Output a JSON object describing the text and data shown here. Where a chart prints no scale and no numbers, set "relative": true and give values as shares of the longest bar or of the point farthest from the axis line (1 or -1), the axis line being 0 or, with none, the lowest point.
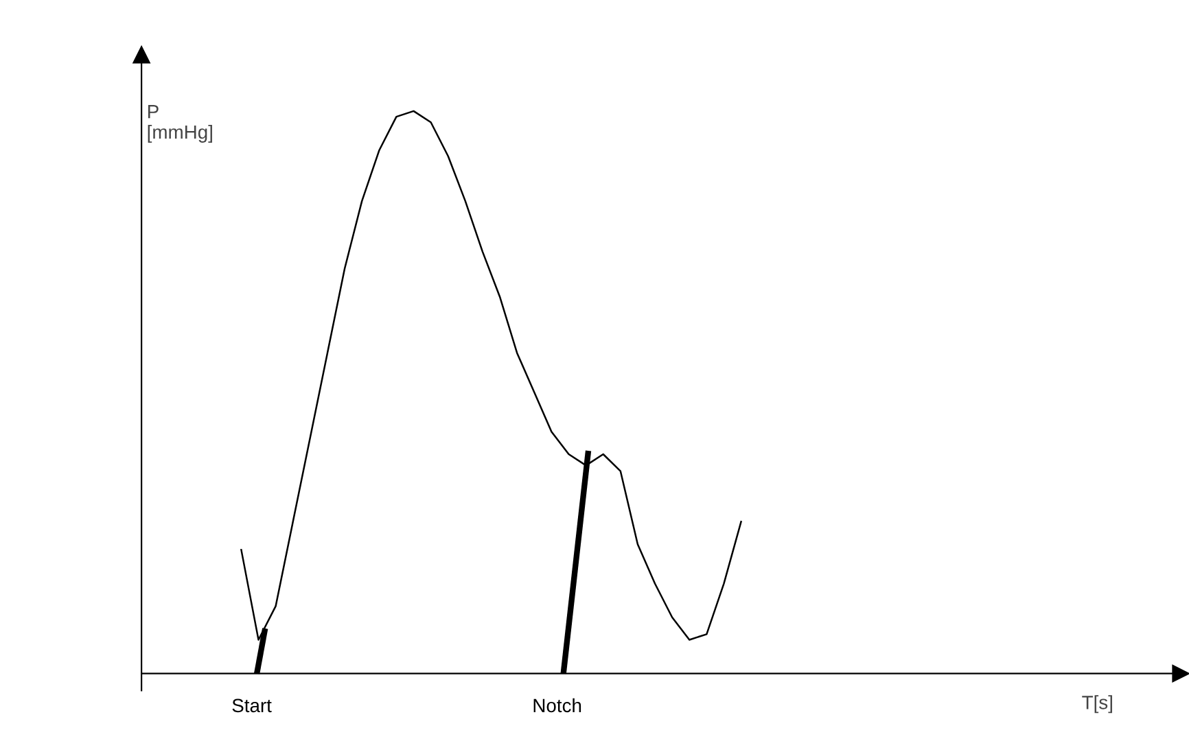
{
  "chart_data": {
    "type": "line",
    "relative": true,
    "ylabel": "P\n[mmHg]",
    "marker": "none",
    "line_style": "solid",
    "categories": [
      null,
      null,
      null,
      null,
      null,
      null,
      null,
      null,
      null,
      null,
      null,
      null,
      null,
      null,
      null,
      null,
      null,
      null,
      null,
      null,
      null,
      null,
      null,
      null,
      null,
      null,
      null,
      null,
      null,
      null
    ],
    "series": [
      {
        "color": "#000000",
        "values": [
          0.22,
          0.06,
          0.12,
          0.27,
          0.42,
          0.57,
          0.72,
          0.84,
          0.93,
          0.99,
          1.0,
          0.98,
          0.92,
          0.84,
          0.75,
          0.67,
          0.57,
          0.5,
          0.43,
          0.39,
          0.37,
          0.39,
          0.36,
          0.23,
          0.16,
          0.1,
          0.06,
          0.07,
          0.16,
          0.27
        ]
      }
    ],
    "annotations": [
      "Start",
      "Notch",
      "T[s]"
    ]
  }
}
